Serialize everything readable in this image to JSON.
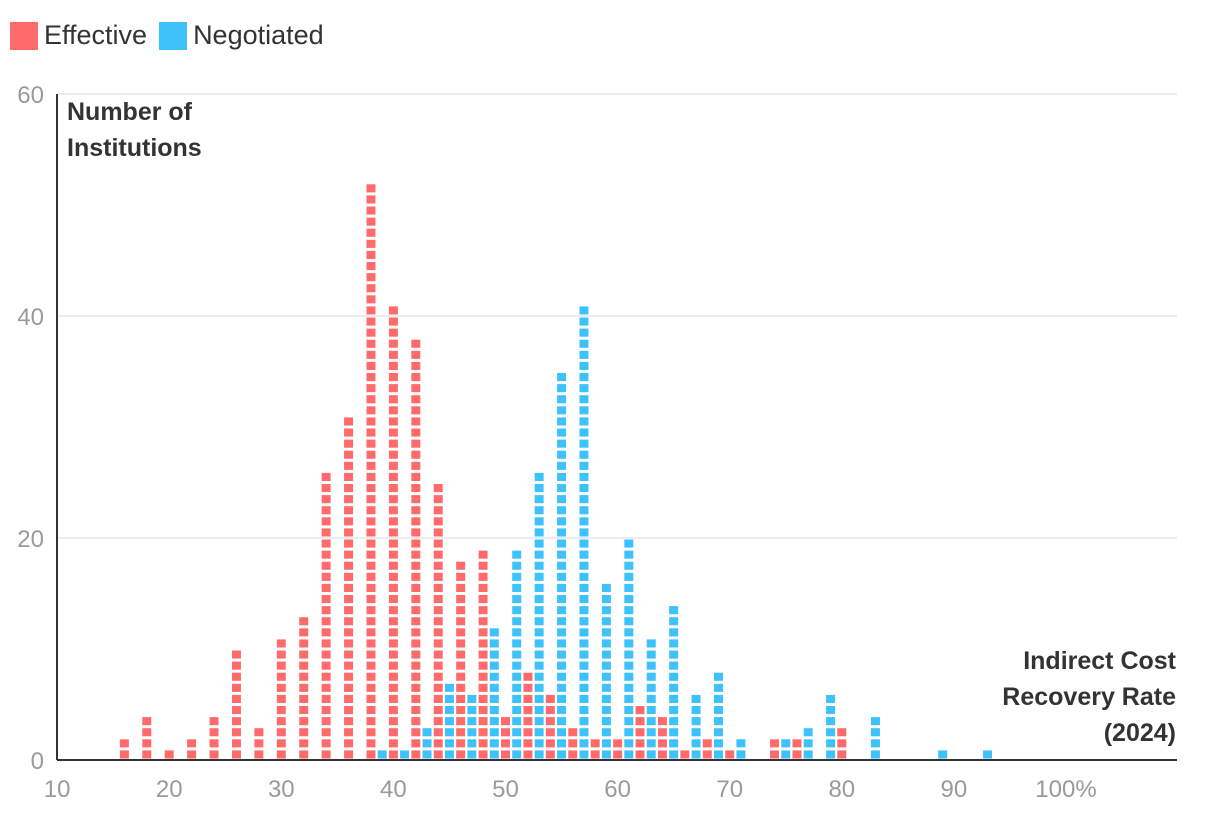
{
  "chart_data": {
    "type": "bar",
    "subtype": "dot-stacked histogram",
    "ylabel_lines": [
      "Number of",
      "Institutions"
    ],
    "xlabel_lines": [
      "Indirect Cost",
      "Recovery Rate",
      "(2024)"
    ],
    "x_tick_labels": [
      "10",
      "20",
      "30",
      "40",
      "50",
      "60",
      "70",
      "80",
      "90",
      "100%"
    ],
    "y_tick_labels": [
      "0",
      "20",
      "40",
      "60"
    ],
    "ylim": [
      0,
      60
    ],
    "xlim": [
      0,
      100
    ],
    "grid": true,
    "legend_position": "top-left",
    "series": [
      {
        "name": "Effective",
        "color": "#ff6b6b",
        "x": [
          16,
          18,
          20,
          22,
          24,
          26,
          28,
          30,
          32,
          34,
          36,
          38,
          40,
          42,
          44,
          46,
          48,
          50,
          52,
          54,
          56,
          58,
          60,
          62,
          64,
          66,
          68,
          70,
          74,
          76,
          80
        ],
        "values": [
          2,
          4,
          1,
          2,
          4,
          10,
          3,
          11,
          13,
          26,
          31,
          52,
          41,
          38,
          25,
          18,
          19,
          4,
          8,
          6,
          3,
          2,
          2,
          5,
          4,
          1,
          2,
          1,
          2,
          2,
          3
        ]
      },
      {
        "name": "Negotiated",
        "color": "#3ec2fc",
        "x": [
          39,
          41,
          43,
          45,
          47,
          49,
          51,
          53,
          55,
          57,
          59,
          61,
          63,
          65,
          67,
          69,
          71,
          75,
          77,
          79,
          83,
          89,
          93
        ],
        "values": [
          1,
          1,
          3,
          7,
          6,
          12,
          19,
          26,
          35,
          41,
          16,
          20,
          11,
          14,
          6,
          8,
          2,
          2,
          3,
          6,
          4,
          1,
          1
        ]
      }
    ]
  }
}
